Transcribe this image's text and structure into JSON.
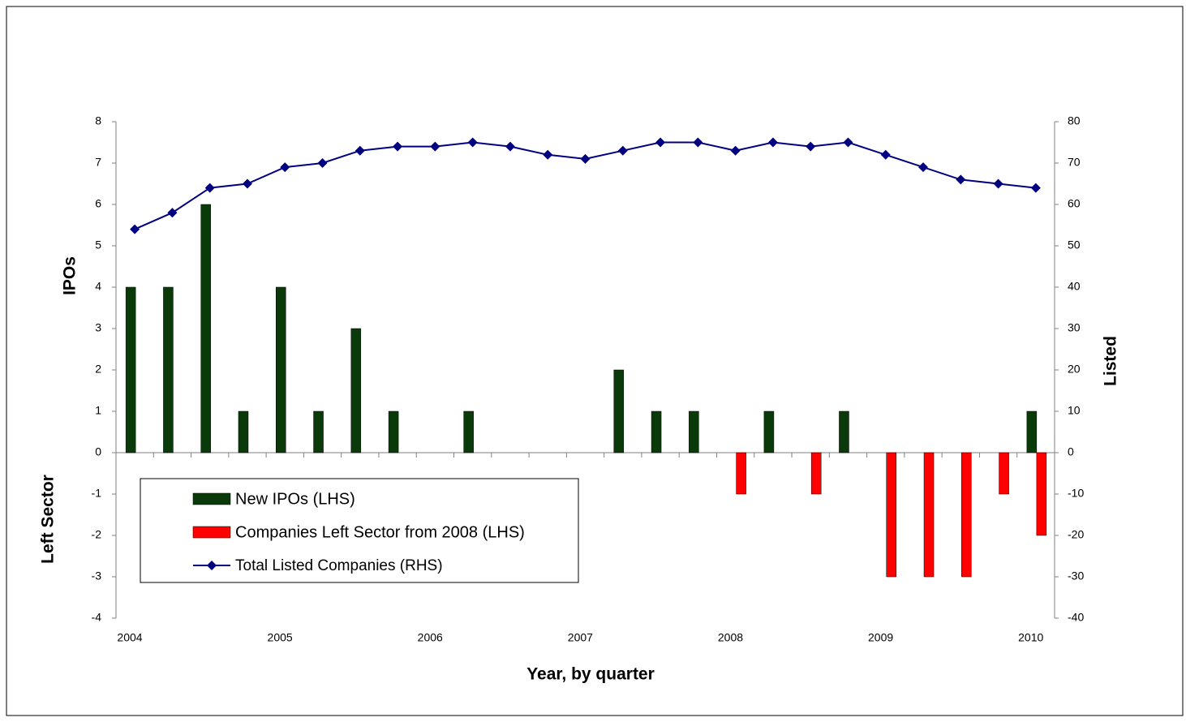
{
  "chart_data": {
    "type": "bar",
    "xlabel": "Year, by quarter",
    "ylabel": "IPOs",
    "ylabel2": "Left Sector",
    "y2label": "Listed",
    "categories": [
      "2004",
      null,
      null,
      null,
      "2005",
      null,
      null,
      null,
      "2006",
      null,
      null,
      null,
      "2007",
      null,
      null,
      null,
      "2008",
      null,
      null,
      null,
      "2009",
      null,
      null,
      null,
      "2010"
    ],
    "series": [
      {
        "name": "New IPOs (LHS)",
        "type": "bar",
        "color": "#0a3a0a",
        "values": [
          4,
          4,
          6,
          1,
          4,
          1,
          3,
          1,
          0,
          1,
          0,
          0,
          0,
          2,
          1,
          1,
          0,
          1,
          0,
          1,
          0,
          0,
          0,
          0,
          1
        ]
      },
      {
        "name": "Companies Left Sector from 2008 (LHS)",
        "type": "bar",
        "color": "#ff0000",
        "values": [
          0,
          0,
          0,
          0,
          0,
          0,
          0,
          0,
          0,
          0,
          0,
          0,
          0,
          0,
          0,
          0,
          -1,
          0,
          -1,
          0,
          -3,
          -3,
          -3,
          -1,
          -2
        ]
      },
      {
        "name": "Total Listed Companies (RHS)",
        "type": "line",
        "axis": "y2",
        "color": "#000080",
        "values": [
          54,
          58,
          64,
          65,
          69,
          70,
          73,
          74,
          74,
          75,
          74,
          72,
          71,
          73,
          75,
          75,
          73,
          75,
          74,
          75,
          72,
          69,
          66,
          65,
          64
        ]
      }
    ],
    "ylim": [
      -4,
      8
    ],
    "yticks": [
      -4,
      -3,
      -2,
      -1,
      0,
      1,
      2,
      3,
      4,
      5,
      6,
      7,
      8
    ],
    "y2lim": [
      -40,
      80
    ],
    "y2ticks": [
      -40,
      -30,
      -20,
      -10,
      0,
      10,
      20,
      30,
      40,
      50,
      60,
      70,
      80
    ],
    "grid": false,
    "legend": "lower left"
  }
}
